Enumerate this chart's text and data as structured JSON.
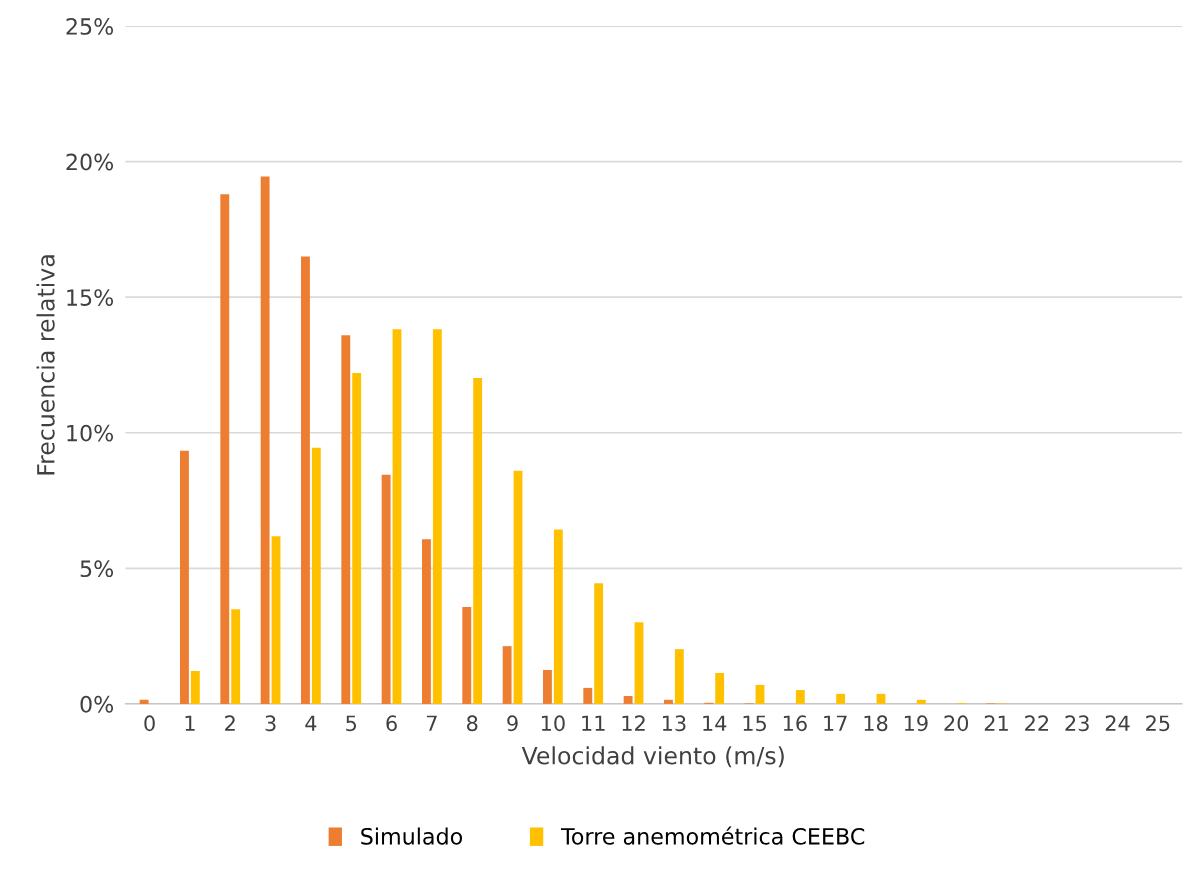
{
  "chart_data": {
    "type": "bar",
    "xlabel": "Velocidad viento (m/s)",
    "ylabel": "Frecuencia relativa",
    "categories": [
      "0",
      "1",
      "2",
      "3",
      "4",
      "5",
      "6",
      "7",
      "8",
      "9",
      "10",
      "11",
      "12",
      "13",
      "14",
      "15",
      "16",
      "17",
      "18",
      "19",
      "20",
      "21",
      "22",
      "23",
      "24",
      "25"
    ],
    "series": [
      {
        "name": "Simulado",
        "color": "#ed7d31",
        "values": [
          0.15,
          9.34,
          18.8,
          19.45,
          16.5,
          13.6,
          8.45,
          6.07,
          3.57,
          2.13,
          1.25,
          0.59,
          0.29,
          0.15,
          0.04,
          0.02,
          0,
          0,
          0,
          0,
          0,
          0.02,
          0,
          0,
          0,
          0
        ]
      },
      {
        "name": "Torre anemométrica CEEBC",
        "color": "#ffc000",
        "values": [
          0,
          1.21,
          3.49,
          6.18,
          9.45,
          12.2,
          13.82,
          13.82,
          12.02,
          8.6,
          6.43,
          4.45,
          3.01,
          2.02,
          1.14,
          0.7,
          0.51,
          0.37,
          0.37,
          0.15,
          0.03,
          0.02,
          null,
          0,
          0,
          0
        ]
      }
    ],
    "ylim": [
      0,
      25
    ],
    "yticks": [
      {
        "value": 0,
        "label": "0%"
      },
      {
        "value": 5,
        "label": "5%"
      },
      {
        "value": 10,
        "label": "10%"
      },
      {
        "value": 15,
        "label": "15%"
      },
      {
        "value": 20,
        "label": "20%"
      },
      {
        "value": 25,
        "label": "25%"
      }
    ],
    "grid": "y",
    "legend": "bottom"
  }
}
